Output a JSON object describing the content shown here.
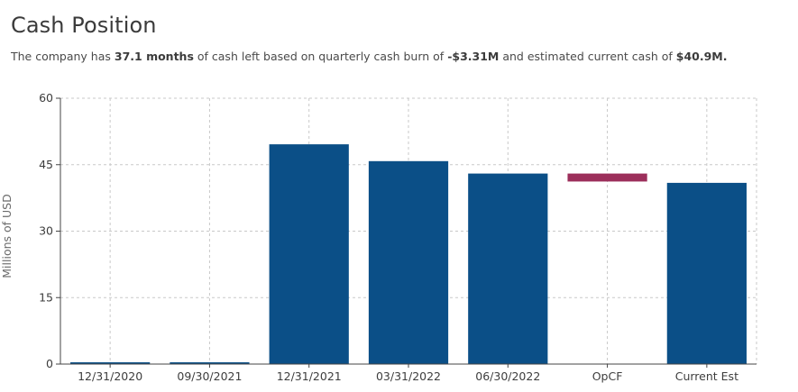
{
  "title": "Cash Position",
  "subtitle": {
    "p1": "The company has ",
    "months": "37.1 months",
    "p2": " of cash left based on quarterly cash burn of ",
    "burn": "-$3.31M",
    "p3": " and estimated current cash of ",
    "cash": "$40.9M."
  },
  "chart_data": {
    "type": "bar",
    "title": "Cash Position",
    "xlabel": "",
    "ylabel": "Millions of USD",
    "ylim": [
      0,
      60
    ],
    "yticks": [
      "0",
      "15",
      "30",
      "45",
      "60"
    ],
    "grid": true,
    "categories": [
      "12/31/2020",
      "09/30/2021",
      "12/31/2021",
      "03/31/2022",
      "06/30/2022",
      "OpCF",
      "Current Est"
    ],
    "bars": [
      {
        "category": "12/31/2020",
        "base": 0,
        "value": 0.4,
        "color": "#0b4f87"
      },
      {
        "category": "09/30/2021",
        "base": 0,
        "value": 0.4,
        "color": "#0b4f87"
      },
      {
        "category": "12/31/2021",
        "base": 0,
        "value": 49.6,
        "color": "#0b4f87"
      },
      {
        "category": "03/31/2022",
        "base": 0,
        "value": 45.8,
        "color": "#0b4f87"
      },
      {
        "category": "06/30/2022",
        "base": 0,
        "value": 43.0,
        "color": "#0b4f87"
      },
      {
        "category": "OpCF",
        "base": 41.2,
        "value": 43.0,
        "color": "#9c2f5b"
      },
      {
        "category": "Current Est",
        "base": 0,
        "value": 40.9,
        "color": "#0b4f87"
      }
    ]
  }
}
